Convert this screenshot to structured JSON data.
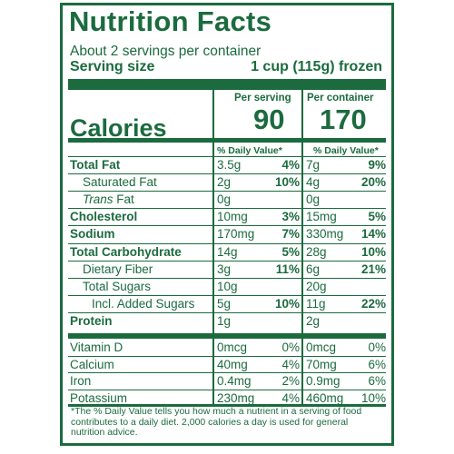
{
  "title": "Nutrition Facts",
  "servings_per_container": "About 2 servings per container",
  "serving_size_label": "Serving size",
  "serving_size_value": "1 cup (115g) frozen",
  "per_serving_header": "Per serving",
  "per_container_header": "Per container",
  "calories_label": "Calories",
  "calories_per_serving": "90",
  "calories_per_container": "170",
  "dv_header": "% Daily Value*",
  "nutrients": [
    {
      "name": "Total Fat",
      "bold": true,
      "indent": 0,
      "serv_amt": "3.5g",
      "serv_dv": "4%",
      "cont_amt": "7g",
      "cont_dv": "9%"
    },
    {
      "name": "Saturated Fat",
      "bold": false,
      "indent": 1,
      "serv_amt": "2g",
      "serv_dv": "10%",
      "cont_amt": "4g",
      "cont_dv": "20%"
    },
    {
      "name": "Trans Fat",
      "bold": false,
      "italic_prefix": "Trans",
      "rest": " Fat",
      "indent": 1,
      "serv_amt": "0g",
      "serv_dv": "",
      "cont_amt": "0g",
      "cont_dv": ""
    },
    {
      "name": "Cholesterol",
      "bold": true,
      "indent": 0,
      "serv_amt": "10mg",
      "serv_dv": "3%",
      "cont_amt": "15mg",
      "cont_dv": "5%"
    },
    {
      "name": "Sodium",
      "bold": true,
      "indent": 0,
      "serv_amt": "170mg",
      "serv_dv": "7%",
      "cont_amt": "330mg",
      "cont_dv": "14%"
    },
    {
      "name": "Total Carbohydrate",
      "bold": true,
      "indent": 0,
      "serv_amt": "14g",
      "serv_dv": "5%",
      "cont_amt": "28g",
      "cont_dv": "10%"
    },
    {
      "name": "Dietary Fiber",
      "bold": false,
      "indent": 1,
      "serv_amt": "3g",
      "serv_dv": "11%",
      "cont_amt": "6g",
      "cont_dv": "21%"
    },
    {
      "name": "Total Sugars",
      "bold": false,
      "indent": 1,
      "serv_amt": "10g",
      "serv_dv": "",
      "cont_amt": "20g",
      "cont_dv": ""
    },
    {
      "name": "Incl. Added Sugars",
      "bold": false,
      "indent": 2,
      "serv_amt": "5g",
      "serv_dv": "10%",
      "cont_amt": "11g",
      "cont_dv": "22%"
    },
    {
      "name": "Protein",
      "bold": true,
      "indent": 0,
      "serv_amt": "1g",
      "serv_dv": "",
      "cont_amt": "2g",
      "cont_dv": ""
    }
  ],
  "vitamins": [
    {
      "name": "Vitamin D",
      "serv_amt": "0mcg",
      "serv_dv": "0%",
      "cont_amt": "0mcg",
      "cont_dv": "0%"
    },
    {
      "name": "Calcium",
      "serv_amt": "40mg",
      "serv_dv": "4%",
      "cont_amt": "70mg",
      "cont_dv": "6%"
    },
    {
      "name": "Iron",
      "serv_amt": "0.4mg",
      "serv_dv": "2%",
      "cont_amt": "0.9mg",
      "cont_dv": "6%"
    },
    {
      "name": "Potassium",
      "serv_amt": "230mg",
      "serv_dv": "4%",
      "cont_amt": "460mg",
      "cont_dv": "10%"
    }
  ],
  "footnote": "*The % Daily Value tells you how much a nutrient in a serving of food contributes to a daily diet. 2,000 calories a day is used for general nutrition advice.",
  "colors": {
    "label_green": "#1b6b3e"
  }
}
